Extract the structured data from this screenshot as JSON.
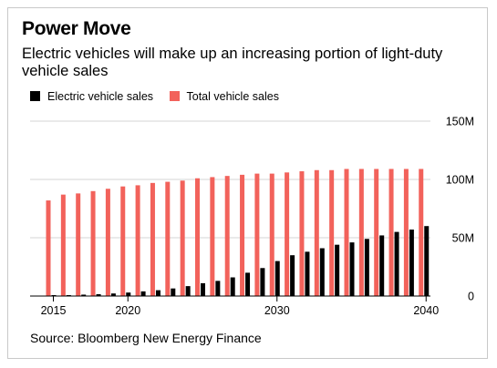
{
  "title": "Power Move",
  "subtitle": "Electric vehicles will make up an increasing portion of light-duty vehicle sales",
  "legend": [
    {
      "label": "Electric vehicle sales",
      "color": "#000000"
    },
    {
      "label": "Total vehicle sales",
      "color": "#f2625b"
    }
  ],
  "source": "Source: Bloomberg New Energy Finance",
  "chart_data": {
    "type": "bar",
    "categories": [
      2015,
      2016,
      2017,
      2018,
      2019,
      2020,
      2021,
      2022,
      2023,
      2024,
      2025,
      2026,
      2027,
      2028,
      2029,
      2030,
      2031,
      2032,
      2033,
      2034,
      2035,
      2036,
      2037,
      2038,
      2039,
      2040
    ],
    "series": [
      {
        "name": "Total vehicle sales",
        "color": "#f2625b",
        "values": [
          82,
          87,
          88,
          90,
          92,
          94,
          95,
          97,
          98,
          99,
          101,
          102,
          103,
          104,
          105,
          105,
          106,
          107,
          108,
          108,
          109,
          109,
          109,
          109,
          109,
          109
        ]
      },
      {
        "name": "Electric vehicle sales",
        "color": "#000000",
        "values": [
          0.5,
          0.8,
          1.2,
          1.6,
          2.2,
          3,
          4,
          5,
          6.5,
          8.5,
          11,
          13,
          16,
          20,
          24,
          30,
          35,
          38,
          41,
          44,
          46,
          49,
          52,
          55,
          57,
          60
        ]
      }
    ],
    "xticks": [
      "2015",
      "2020",
      "2030",
      "2040"
    ],
    "yticks": [
      "0",
      "50M",
      "100M",
      "150M"
    ],
    "ytick_values": [
      0,
      50,
      100,
      150
    ],
    "ylim": [
      0,
      150
    ],
    "xlabel": "",
    "ylabel": "",
    "grid": true,
    "legend_position": "top-left"
  }
}
